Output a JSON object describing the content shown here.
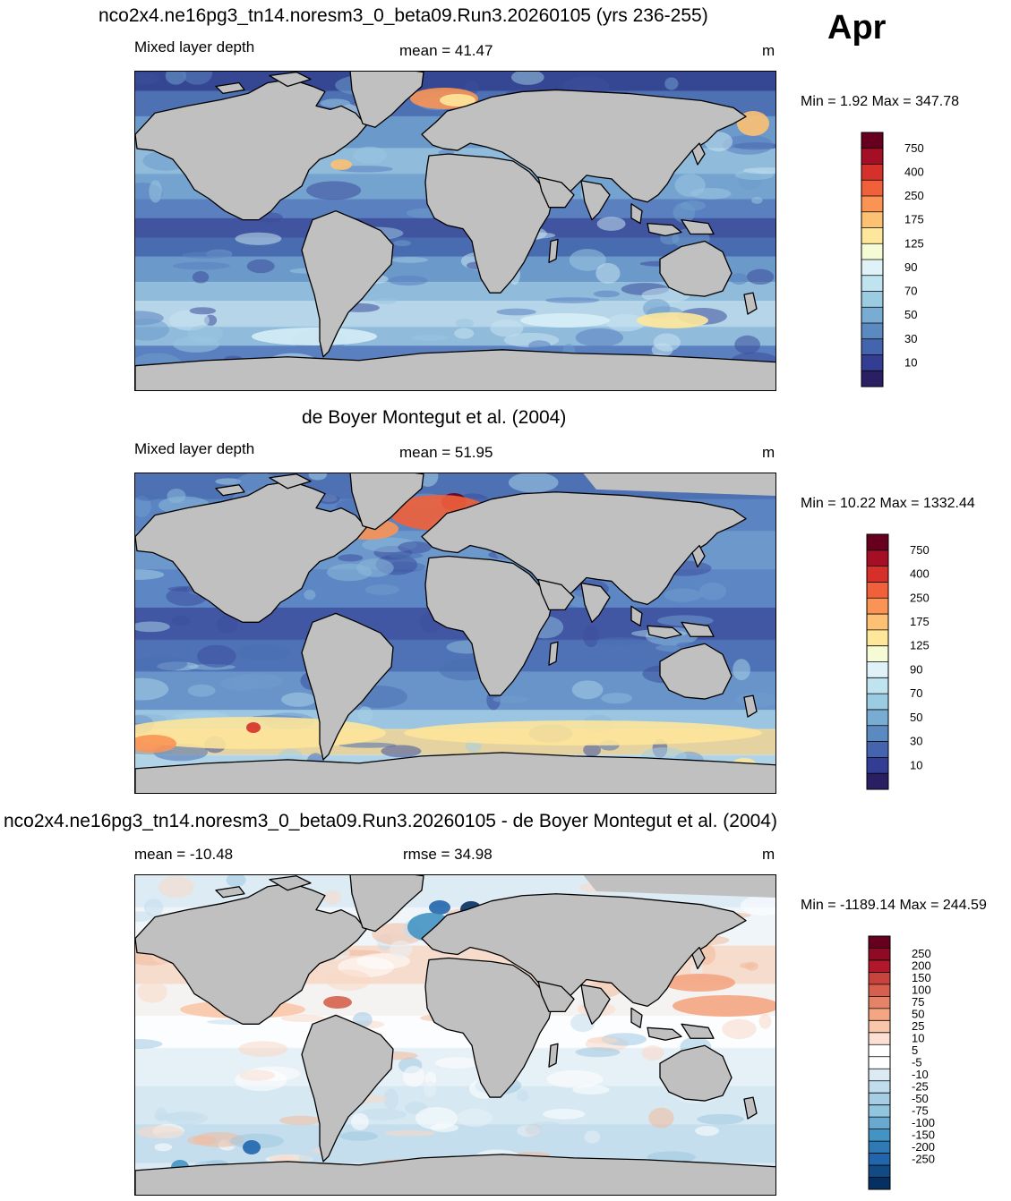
{
  "month": "Apr",
  "panels": [
    {
      "title": "nco2x4.ne16pg3_tn14.noresm3_0_beta09.Run3.20260105 (yrs 236-255)",
      "left_label": "Mixed layer depth",
      "center_label": "mean =  41.47",
      "unit": "m",
      "minmax": "Min =   1.92 Max = 347.78",
      "palette": "model"
    },
    {
      "title": "de Boyer Montegut et al. (2004)",
      "left_label": "Mixed layer depth",
      "center_label": "mean =  51.95",
      "unit": "m",
      "minmax": "Min =  10.22 Max = 1332.44",
      "palette": "obs"
    },
    {
      "title": "nco2x4.ne16pg3_tn14.noresm3_0_beta09.Run3.20260105 - de Boyer Montegut et al. (2004)",
      "left_label": "mean = -10.48",
      "center_label": "rmse =  34.98",
      "unit": "m",
      "minmax": "Min = -1189.14 Max = 244.59",
      "palette": "diff"
    }
  ],
  "colorbars": {
    "abs": {
      "labels": [
        "750",
        "400",
        "250",
        "175",
        "125",
        "90",
        "70",
        "50",
        "30",
        "10"
      ],
      "colors": [
        "#67001f",
        "#a50f26",
        "#d6302a",
        "#f0603a",
        "#f99455",
        "#fdc173",
        "#fee79a",
        "#f5fbd5",
        "#dff2f7",
        "#bfe3ef",
        "#9ccce2",
        "#78acd3",
        "#5b8ac0",
        "#4464ad",
        "#333d94",
        "#2a1f63"
      ]
    },
    "diff": {
      "labels": [
        "250",
        "200",
        "150",
        "100",
        "75",
        "50",
        "25",
        "10",
        "5",
        "-5",
        "-10",
        "-25",
        "-50",
        "-75",
        "-100",
        "-150",
        "-200",
        "-250"
      ],
      "colors": [
        "#67001f",
        "#8e0b26",
        "#b2182b",
        "#c8423e",
        "#d6604d",
        "#e58368",
        "#f4a582",
        "#f9c6a9",
        "#fde0d3",
        "#ffffff",
        "#ffffff",
        "#dbeaf3",
        "#c1dced",
        "#a7cde4",
        "#92c5de",
        "#6aa9cf",
        "#4393c3",
        "#2f79b5",
        "#2166ac",
        "#124a86",
        "#053061"
      ]
    }
  }
}
